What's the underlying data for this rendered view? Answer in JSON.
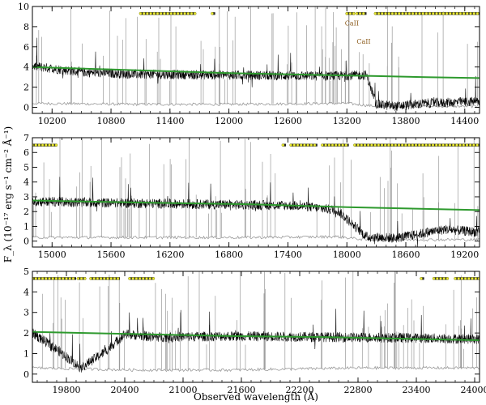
{
  "figure": {
    "ylabel": "F_λ (10⁻¹⁷ erg s⁻¹ cm⁻² Å⁻¹)",
    "xlabel": "Observed wavelength (Å)"
  },
  "colors": {
    "spectrum": "#000000",
    "error": "#9a9a9a",
    "model": "#2e9a2e",
    "telluric_fill": "#e8e832",
    "telluric_edge": "#6b6b00",
    "annotation": "#8b5a1a"
  },
  "chart_data": [
    {
      "type": "line",
      "xlim": [
        10000,
        14550
      ],
      "ylim": [
        -0.6,
        10
      ],
      "xticks": [
        10200,
        10800,
        11400,
        12000,
        12600,
        13200,
        13800,
        14400
      ],
      "yticks": [
        0,
        2,
        4,
        6,
        8,
        10
      ],
      "grid": false,
      "series": [
        {
          "role": "model",
          "x": [
            10000,
            11000,
            12000,
            13000,
            13500,
            14000,
            14550
          ],
          "y": [
            4.0,
            3.7,
            3.4,
            3.2,
            3.1,
            3.0,
            2.9
          ]
        },
        {
          "role": "spectrum",
          "x": [
            10000,
            10500,
            11000,
            12000,
            13000,
            13400,
            13500,
            13700,
            14000,
            14300,
            14550
          ],
          "y": [
            4.1,
            3.5,
            3.3,
            3.2,
            3.1,
            3.2,
            0.3,
            0.1,
            0.4,
            0.5,
            0.6
          ]
        },
        {
          "role": "error",
          "x": [
            10000,
            11000,
            12000,
            13200,
            13500,
            14550
          ],
          "y": [
            0.4,
            0.3,
            0.3,
            0.4,
            0.1,
            0.1
          ]
        }
      ],
      "telluric_bands": [
        {
          "x_start": 11100,
          "x_end": 11660,
          "y": 9.3
        },
        {
          "x_start": 11830,
          "x_end": 11860,
          "y": 9.3
        },
        {
          "x_start": 13200,
          "x_end": 13280,
          "y": 9.3
        },
        {
          "x_start": 13300,
          "x_end": 13400,
          "y": 9.3
        },
        {
          "x_start": 13490,
          "x_end": 14550,
          "y": 9.3
        }
      ],
      "annotations": [
        {
          "text": "CaII",
          "x": 13180,
          "y": 8.1
        },
        {
          "text": "CaII",
          "x": 13300,
          "y": 6.3
        }
      ]
    },
    {
      "type": "line",
      "xlim": [
        14800,
        19350
      ],
      "ylim": [
        -0.4,
        7
      ],
      "xticks": [
        15000,
        15600,
        16200,
        16800,
        17400,
        18000,
        18600,
        19200
      ],
      "yticks": [
        0,
        1,
        2,
        3,
        4,
        5,
        6,
        7
      ],
      "grid": false,
      "series": [
        {
          "role": "model",
          "x": [
            14800,
            16000,
            17000,
            18000,
            19350
          ],
          "y": [
            2.75,
            2.6,
            2.5,
            2.3,
            2.1
          ]
        },
        {
          "role": "spectrum",
          "x": [
            14800,
            15500,
            16500,
            17500,
            17900,
            18200,
            18500,
            19000,
            19350
          ],
          "y": [
            2.7,
            2.6,
            2.5,
            2.4,
            2.1,
            0.3,
            0.2,
            0.8,
            0.6
          ]
        },
        {
          "role": "error",
          "x": [
            14800,
            16000,
            17000,
            17900,
            18200,
            19350
          ],
          "y": [
            0.25,
            0.25,
            0.25,
            0.3,
            0.1,
            0.1
          ]
        }
      ],
      "telluric_bands": [
        {
          "x_start": 14800,
          "x_end": 15050,
          "y": 6.5
        },
        {
          "x_start": 17350,
          "x_end": 17380,
          "y": 6.5
        },
        {
          "x_start": 17430,
          "x_end": 17700,
          "y": 6.5
        },
        {
          "x_start": 17750,
          "x_end": 18020,
          "y": 6.5
        },
        {
          "x_start": 18080,
          "x_end": 19350,
          "y": 6.5
        }
      ]
    },
    {
      "type": "line",
      "xlim": [
        19450,
        24050
      ],
      "ylim": [
        -0.4,
        5
      ],
      "xticks": [
        19800,
        20400,
        21000,
        21600,
        22200,
        22800,
        23400,
        24000
      ],
      "yticks": [
        0,
        1,
        2,
        3,
        4,
        5
      ],
      "grid": false,
      "series": [
        {
          "role": "model",
          "x": [
            19450,
            20500,
            21500,
            22500,
            23500,
            24050
          ],
          "y": [
            2.05,
            1.95,
            1.85,
            1.8,
            1.7,
            1.65
          ]
        },
        {
          "role": "spectrum",
          "x": [
            19450,
            19700,
            19950,
            20200,
            20400,
            20700,
            21500,
            22500,
            23500,
            24050
          ],
          "y": [
            2.0,
            1.2,
            0.3,
            1.1,
            1.95,
            1.8,
            1.85,
            1.8,
            1.75,
            1.7
          ]
        },
        {
          "role": "error",
          "x": [
            19450,
            20500,
            21500,
            22800,
            24050
          ],
          "y": [
            0.3,
            0.2,
            0.2,
            0.3,
            0.3
          ]
        }
      ],
      "telluric_bands": [
        {
          "x_start": 19450,
          "x_end": 19900,
          "y": 4.65
        },
        {
          "x_start": 19920,
          "x_end": 20000,
          "y": 4.65
        },
        {
          "x_start": 20050,
          "x_end": 20350,
          "y": 4.65
        },
        {
          "x_start": 20450,
          "x_end": 20700,
          "y": 4.65
        },
        {
          "x_start": 23450,
          "x_end": 23480,
          "y": 4.65
        },
        {
          "x_start": 23580,
          "x_end": 23720,
          "y": 4.65
        },
        {
          "x_start": 23800,
          "x_end": 24050,
          "y": 4.65
        }
      ]
    }
  ]
}
